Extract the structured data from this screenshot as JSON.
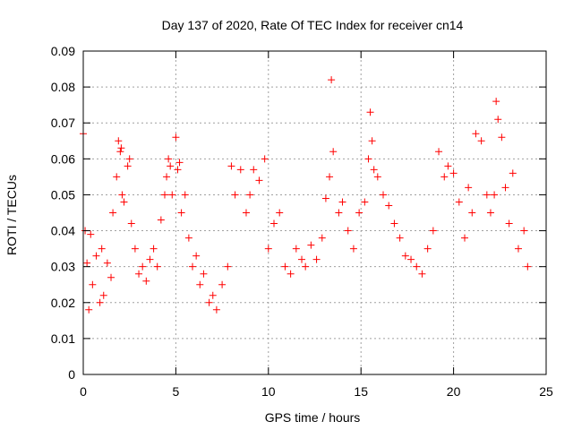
{
  "chart_data": {
    "type": "scatter",
    "title": "Day 137 of 2020, Rate Of TEC Index for receiver cn14",
    "xlabel": "GPS time / hours",
    "ylabel": "ROTI / TECUs",
    "xlim": [
      0,
      25
    ],
    "ylim": [
      0,
      0.09
    ],
    "xticks": [
      "0",
      "5",
      "10",
      "15",
      "20",
      "25"
    ],
    "yticks": [
      "0",
      "0.01",
      "0.02",
      "0.03",
      "0.04",
      "0.05",
      "0.06",
      "0.07",
      "0.08",
      "0.09"
    ],
    "grid": true,
    "marker": "plus",
    "marker_color": "#ff0000",
    "series": [
      {
        "x": [
          0.0,
          0.1,
          0.2,
          0.3,
          0.4,
          0.5,
          0.7,
          0.9,
          1.0,
          1.1,
          1.3,
          1.5,
          1.6,
          1.8,
          1.9,
          2.0,
          2.05,
          2.1,
          2.2,
          2.4,
          2.5,
          2.6,
          2.8,
          3.0,
          3.2,
          3.4,
          3.6,
          3.8,
          4.0,
          4.2,
          4.4,
          4.5,
          4.6,
          4.7,
          4.8,
          5.0,
          5.1,
          5.2,
          5.3,
          5.5,
          5.7,
          5.9,
          6.1,
          6.3,
          6.5,
          6.8,
          7.0,
          7.2,
          7.5,
          7.8,
          8.0,
          8.2,
          8.5,
          8.8,
          9.0,
          9.2,
          9.5,
          9.8,
          10.0,
          10.3,
          10.6,
          10.9,
          11.2,
          11.5,
          11.8,
          12.0,
          12.3,
          12.6,
          12.9,
          13.1,
          13.3,
          13.4,
          13.5,
          13.8,
          14.0,
          14.3,
          14.6,
          14.9,
          15.2,
          15.4,
          15.5,
          15.6,
          15.7,
          15.9,
          16.2,
          16.5,
          16.8,
          17.1,
          17.4,
          17.7,
          18.0,
          18.3,
          18.6,
          18.9,
          19.2,
          19.5,
          19.7,
          20.0,
          20.3,
          20.6,
          20.8,
          21.0,
          21.2,
          21.5,
          21.8,
          22.0,
          22.2,
          22.3,
          22.4,
          22.6,
          22.8,
          23.0,
          23.2,
          23.5,
          23.8,
          24.0
        ],
        "y": [
          0.067,
          0.04,
          0.031,
          0.018,
          0.039,
          0.025,
          0.033,
          0.02,
          0.035,
          0.022,
          0.031,
          0.027,
          0.045,
          0.055,
          0.065,
          0.062,
          0.063,
          0.05,
          0.048,
          0.058,
          0.06,
          0.042,
          0.035,
          0.028,
          0.03,
          0.026,
          0.032,
          0.035,
          0.03,
          0.043,
          0.05,
          0.055,
          0.06,
          0.058,
          0.05,
          0.066,
          0.057,
          0.059,
          0.045,
          0.05,
          0.038,
          0.03,
          0.033,
          0.025,
          0.028,
          0.02,
          0.022,
          0.018,
          0.025,
          0.03,
          0.058,
          0.05,
          0.057,
          0.045,
          0.05,
          0.057,
          0.054,
          0.06,
          0.035,
          0.042,
          0.045,
          0.03,
          0.028,
          0.035,
          0.032,
          0.03,
          0.036,
          0.032,
          0.038,
          0.049,
          0.055,
          0.082,
          0.062,
          0.045,
          0.048,
          0.04,
          0.035,
          0.045,
          0.048,
          0.06,
          0.073,
          0.065,
          0.057,
          0.055,
          0.05,
          0.047,
          0.042,
          0.038,
          0.033,
          0.032,
          0.03,
          0.028,
          0.035,
          0.04,
          0.062,
          0.055,
          0.058,
          0.056,
          0.048,
          0.038,
          0.052,
          0.045,
          0.067,
          0.065,
          0.05,
          0.045,
          0.05,
          0.076,
          0.071,
          0.066,
          0.052,
          0.042,
          0.056,
          0.035,
          0.04,
          0.03
        ]
      }
    ]
  }
}
